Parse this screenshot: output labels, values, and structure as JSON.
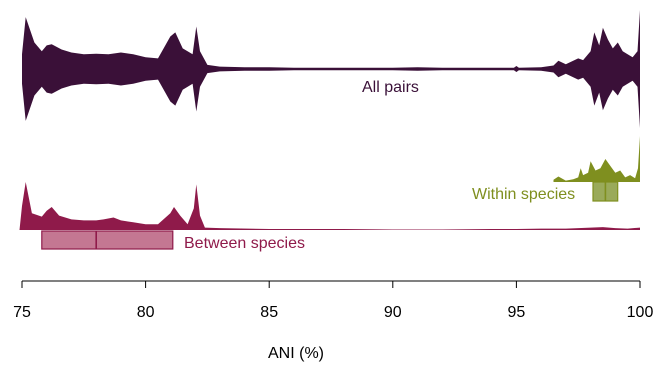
{
  "chart_data": {
    "type": "area",
    "xlabel": "ANI (%)",
    "xlim": [
      75,
      100
    ],
    "x_ticks": [
      75,
      80,
      85,
      90,
      95,
      100
    ],
    "x_tick_labels": [
      "75",
      "80",
      "85",
      "90",
      "95",
      "100"
    ],
    "annotations": {
      "all_pairs": "All pairs",
      "within_species": "Within species",
      "between_species": "Between species"
    },
    "colors": {
      "all_pairs": "#3a1038",
      "within_species": "#7f8f1f",
      "between_species": "#8f1a4a",
      "within_box": "#9aaa5a",
      "between_box": "#c47792"
    },
    "series": [
      {
        "name": "All pairs",
        "style": "violin",
        "x": [
          75,
          75.15,
          75.5,
          75.8,
          76.0,
          76.2,
          76.6,
          77.0,
          77.5,
          78.0,
          78.5,
          79.0,
          79.5,
          80.0,
          80.5,
          81.0,
          81.2,
          81.5,
          81.9,
          82.05,
          82.2,
          82.5,
          83.0,
          84.0,
          85.0,
          86.0,
          87.0,
          88.0,
          89.0,
          90.0,
          91.0,
          92.0,
          93.0,
          94.0,
          94.9,
          95.0,
          95.1,
          96.0,
          96.5,
          96.7,
          97.0,
          97.5,
          97.7,
          98.0,
          98.15,
          98.35,
          98.5,
          98.7,
          98.9,
          99.1,
          99.3,
          99.5,
          99.7,
          99.9,
          100.0
        ],
        "values": [
          0.25,
          0.88,
          0.45,
          0.3,
          0.4,
          0.42,
          0.33,
          0.28,
          0.25,
          0.26,
          0.25,
          0.28,
          0.25,
          0.2,
          0.18,
          0.55,
          0.62,
          0.35,
          0.25,
          0.72,
          0.3,
          0.07,
          0.04,
          0.03,
          0.03,
          0.02,
          0.02,
          0.02,
          0.02,
          0.02,
          0.03,
          0.02,
          0.02,
          0.02,
          0.02,
          0.05,
          0.02,
          0.03,
          0.06,
          0.14,
          0.08,
          0.18,
          0.15,
          0.3,
          0.62,
          0.4,
          0.7,
          0.5,
          0.35,
          0.45,
          0.3,
          0.25,
          0.2,
          0.3,
          1.0
        ]
      },
      {
        "name": "Within species",
        "style": "density-up",
        "x": [
          96.5,
          96.7,
          97.0,
          97.3,
          97.5,
          97.6,
          97.7,
          97.9,
          98.0,
          98.2,
          98.4,
          98.6,
          98.8,
          99.0,
          99.2,
          99.4,
          99.6,
          99.8,
          99.92,
          100.0
        ],
        "values": [
          0.05,
          0.12,
          0.03,
          0.06,
          0.1,
          0.3,
          0.15,
          0.2,
          0.45,
          0.25,
          0.3,
          0.5,
          0.35,
          0.2,
          0.25,
          0.1,
          0.15,
          0.08,
          0.3,
          1.0
        ]
      },
      {
        "name": "Between species",
        "style": "density-up",
        "x": [
          74.9,
          75.0,
          75.15,
          75.4,
          75.8,
          76.0,
          76.2,
          76.5,
          77.0,
          77.5,
          78.0,
          78.3,
          78.7,
          79.0,
          79.5,
          80.0,
          80.5,
          81.0,
          81.15,
          81.4,
          81.7,
          81.95,
          82.05,
          82.2,
          82.4,
          83.0,
          85.0,
          88.0,
          90.0,
          92.0,
          94.0,
          95.0,
          96.0,
          97.0,
          98.0,
          98.5,
          99.0,
          99.5,
          100.0
        ],
        "values": [
          0.0,
          0.5,
          1.0,
          0.35,
          0.28,
          0.4,
          0.48,
          0.3,
          0.22,
          0.2,
          0.2,
          0.22,
          0.26,
          0.2,
          0.16,
          0.12,
          0.12,
          0.35,
          0.48,
          0.3,
          0.12,
          0.45,
          0.95,
          0.3,
          0.05,
          0.04,
          0.02,
          0.02,
          0.01,
          0.01,
          0.02,
          0.02,
          0.03,
          0.03,
          0.05,
          0.06,
          0.04,
          0.03,
          0.05
        ]
      }
    ],
    "boxes": [
      {
        "name": "Within species",
        "q1": 98.1,
        "median": 98.6,
        "q3": 99.1
      },
      {
        "name": "Between species",
        "q1": 75.8,
        "median": 78.0,
        "q3": 81.1
      }
    ]
  }
}
